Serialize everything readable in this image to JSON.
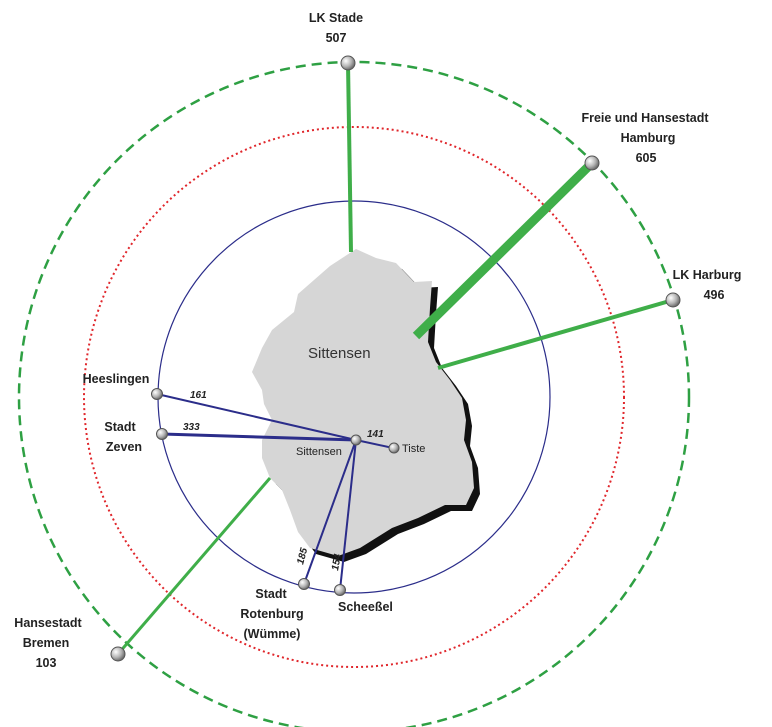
{
  "region_label": "Sittensen",
  "center_label": "Sittensen",
  "external": {
    "stade": {
      "line1": "LK Stade",
      "value": "507"
    },
    "hamburg": {
      "line1": "Freie und Hansestadt",
      "line2": "Hamburg",
      "value": "605"
    },
    "harburg": {
      "line1": "LK Harburg",
      "value": "496"
    },
    "bremen": {
      "line1": "Hansestadt",
      "line2": "Bremen",
      "value": "103"
    }
  },
  "local": {
    "heeslingen": {
      "name": "Heeslingen",
      "value": "161"
    },
    "zeven": {
      "line1": "Stadt",
      "line2": "Zeven",
      "value": "333"
    },
    "tiste": {
      "name": "Tiste",
      "value": "141"
    },
    "rotenburg": {
      "line1": "Stadt",
      "line2": "Rotenburg",
      "line3": "(Wümme)",
      "value": "185"
    },
    "scheessel": {
      "name": "Scheeßel",
      "value": "154"
    }
  },
  "colors": {
    "outer_ring": "#2ea043",
    "middle_ring": "#e0262b",
    "inner_ring": "#2b2d8a",
    "flow_external": "#3fae49",
    "flow_local": "#2b2d8a",
    "region_fill": "#d6d6d6"
  }
}
